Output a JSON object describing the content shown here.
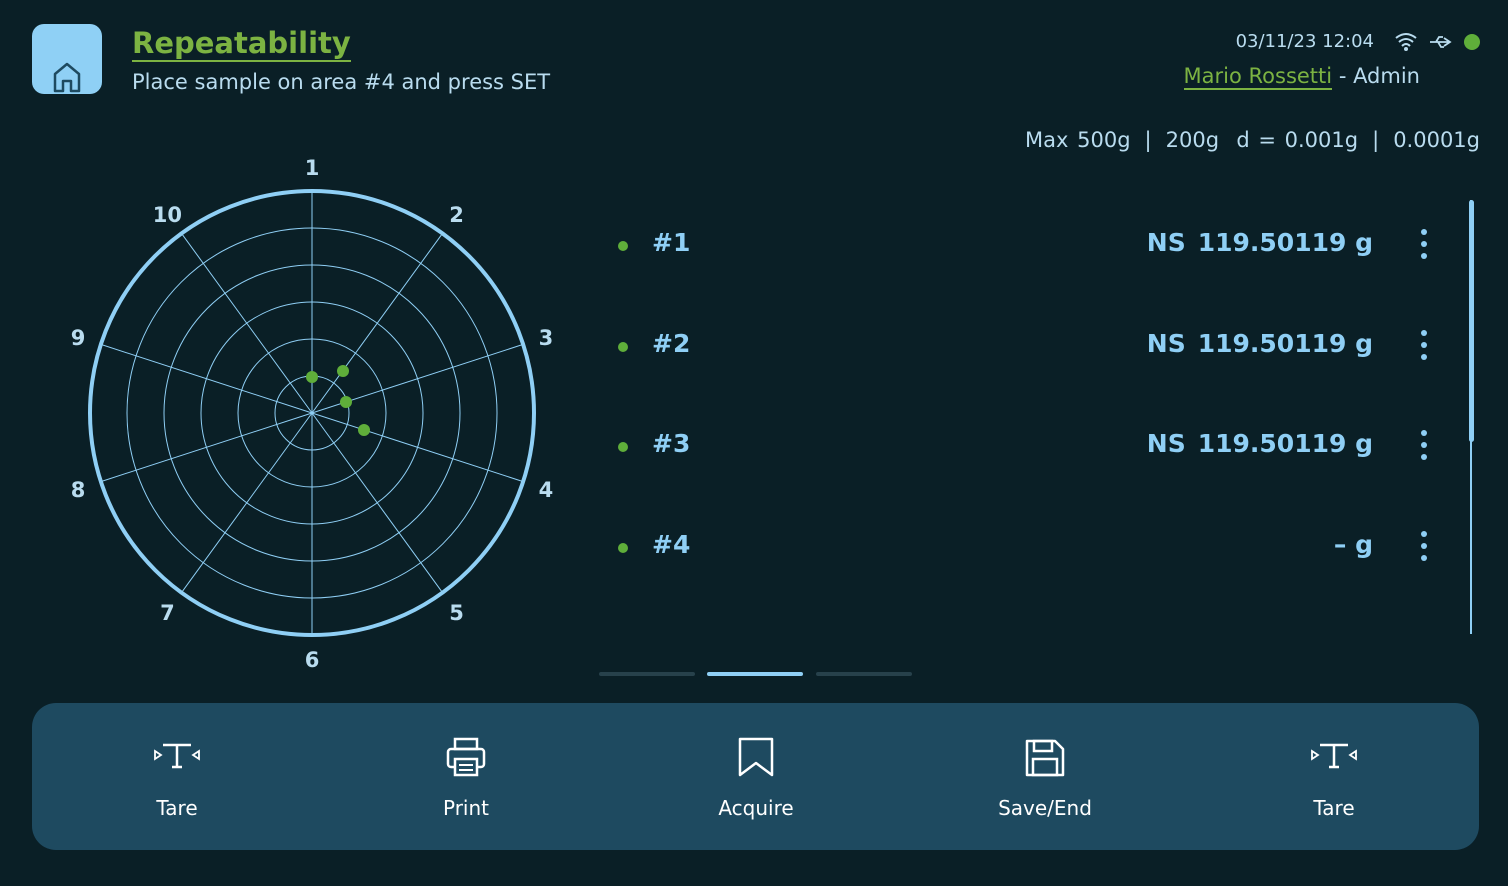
{
  "header": {
    "title": "Repeatability",
    "subtitle": "Place sample on area #4 and press SET",
    "datetime": "03/11/23 12:04",
    "user": "Mario Rossetti",
    "role": "- Admin"
  },
  "capacity": [
    "Max 500g",
    "|",
    "200g  d = 0.001g",
    "|",
    "0.0001g"
  ],
  "polar": {
    "labels": [
      "1",
      "2",
      "3",
      "4",
      "5",
      "6",
      "7",
      "8",
      "9",
      "10"
    ]
  },
  "results": [
    {
      "label": "#1",
      "flag": "NS",
      "value": "119.50119 g"
    },
    {
      "label": "#2",
      "flag": "NS",
      "value": "119.50119 g"
    },
    {
      "label": "#3",
      "flag": "NS",
      "value": "119.50119 g"
    },
    {
      "label": "#4",
      "flag": "",
      "value": "– g"
    }
  ],
  "toolbar": [
    "Tare",
    "Print",
    "Acquire",
    "Save/End",
    "Tare"
  ]
}
